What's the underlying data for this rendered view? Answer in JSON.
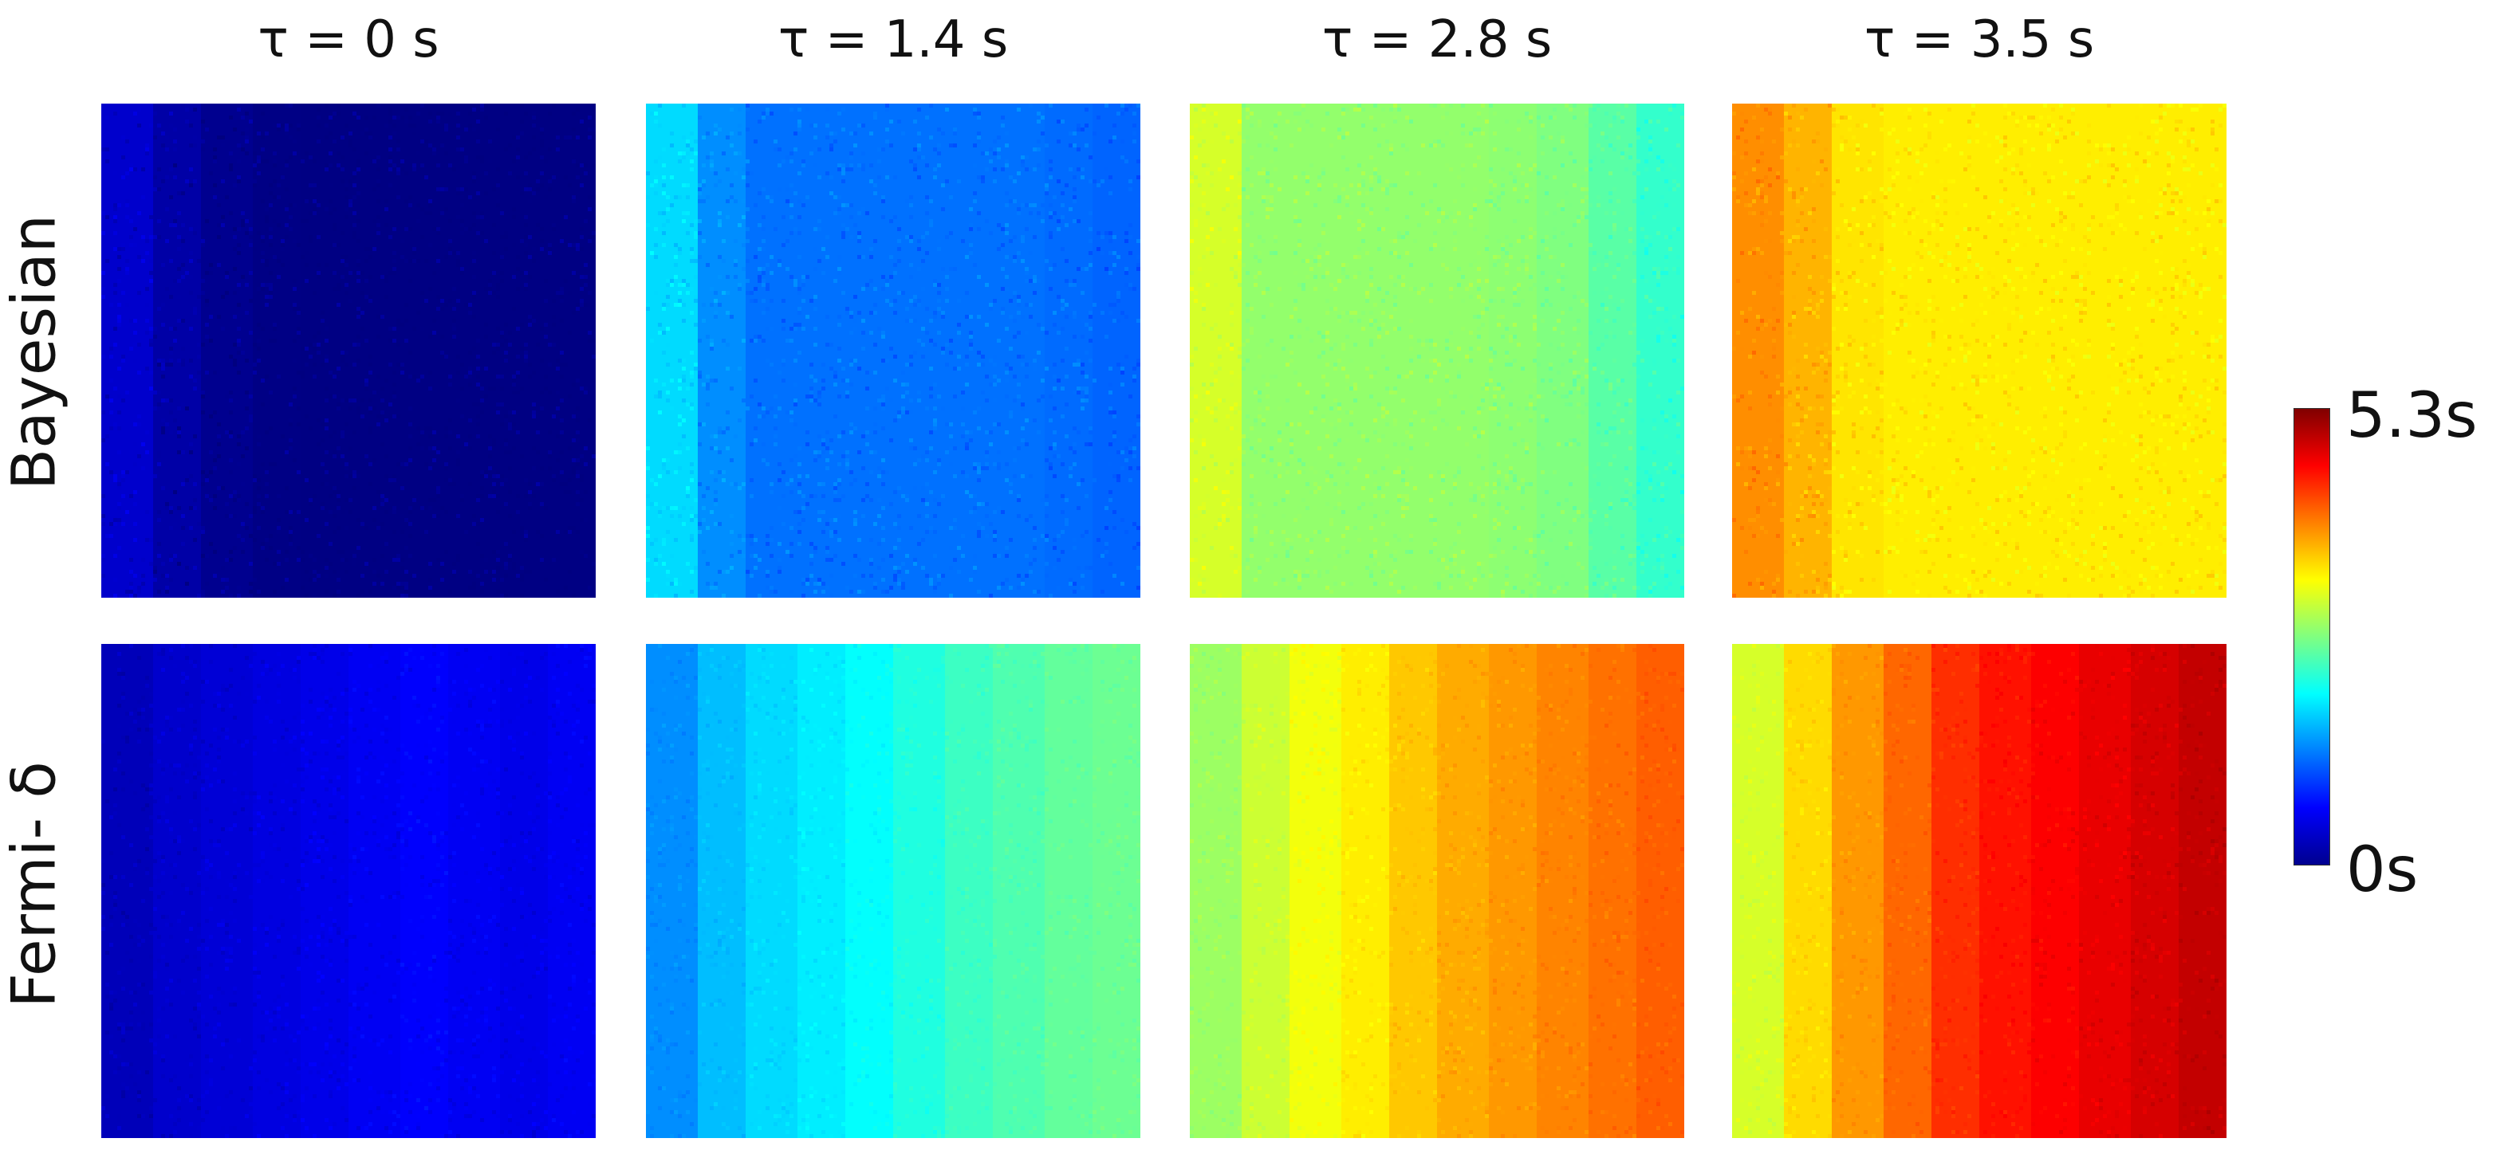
{
  "chart_data": {
    "type": "heatmap",
    "column_titles": [
      "τ = 0 s",
      "τ = 1.4 s",
      "τ = 2.8 s",
      "τ = 3.5 s"
    ],
    "row_labels": [
      "Bayesian",
      "Fermi- δ"
    ],
    "colorbar": {
      "colormap": "jet",
      "min": 0,
      "max": 5.3,
      "min_label": "0s",
      "max_label": "5.3s"
    },
    "bands": 10,
    "panels": [
      {
        "row": "Bayesian",
        "tau": 0,
        "band_values": [
          0.4,
          0.2,
          0.08,
          0.03,
          0.02,
          0.02,
          0.02,
          0.02,
          0.02,
          0.02
        ],
        "noise": 0.18
      },
      {
        "row": "Bayesian",
        "tau": 1.4,
        "band_values": [
          1.8,
          1.4,
          1.25,
          1.25,
          1.25,
          1.25,
          1.25,
          1.25,
          1.22,
          1.18
        ],
        "noise": 0.18
      },
      {
        "row": "Bayesian",
        "tau": 2.8,
        "band_values": [
          3.1,
          2.75,
          2.75,
          2.75,
          2.75,
          2.75,
          2.72,
          2.65,
          2.45,
          2.25
        ],
        "noise": 0.18
      },
      {
        "row": "Bayesian",
        "tau": 3.5,
        "band_values": [
          3.9,
          3.7,
          3.45,
          3.4,
          3.4,
          3.4,
          3.4,
          3.4,
          3.4,
          3.4
        ],
        "noise": 0.2
      },
      {
        "row": "Fermi- δ",
        "tau": 0,
        "band_values": [
          0.3,
          0.4,
          0.45,
          0.5,
          0.55,
          0.6,
          0.65,
          0.6,
          0.55,
          0.6
        ],
        "noise": 0.12
      },
      {
        "row": "Fermi- δ",
        "tau": 1.4,
        "band_values": [
          1.4,
          1.65,
          1.8,
          1.9,
          2.0,
          2.15,
          2.3,
          2.4,
          2.5,
          2.55
        ],
        "noise": 0.1
      },
      {
        "row": "Fermi- δ",
        "tau": 2.8,
        "band_values": [
          2.8,
          3.05,
          3.25,
          3.4,
          3.6,
          3.75,
          3.85,
          3.95,
          4.05,
          4.15
        ],
        "noise": 0.12
      },
      {
        "row": "Fermi- δ",
        "tau": 3.5,
        "band_values": [
          3.1,
          3.5,
          3.85,
          4.1,
          4.4,
          4.55,
          4.65,
          4.75,
          4.85,
          4.95
        ],
        "noise": 0.12
      }
    ]
  }
}
